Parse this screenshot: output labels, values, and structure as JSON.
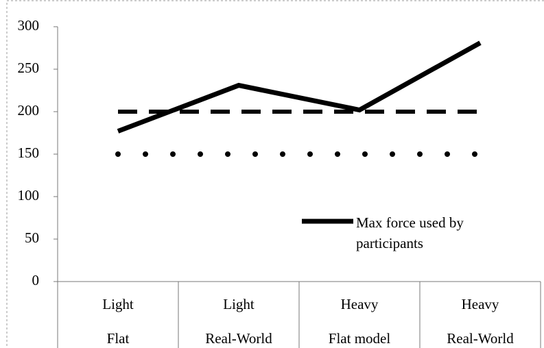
{
  "chart_data": {
    "type": "line",
    "categories": [
      [
        "Light",
        "Flat"
      ],
      [
        "Light",
        "Real-World"
      ],
      [
        "Heavy",
        "Flat model"
      ],
      [
        "Heavy",
        "Real-World"
      ]
    ],
    "series": [
      {
        "name": "Max force used by participants",
        "color": "#000000",
        "style": "solid",
        "values": [
          177,
          231,
          202,
          281
        ]
      },
      {
        "color": "#000000",
        "style": "dashed",
        "values": [
          200,
          200,
          200,
          200
        ]
      },
      {
        "color": "#000000",
        "style": "dotted",
        "values": [
          150,
          150,
          150,
          150
        ]
      }
    ],
    "ylim": [
      0,
      300
    ],
    "yticks": [
      0,
      50,
      100,
      150,
      200,
      250,
      300
    ],
    "grid": false
  }
}
